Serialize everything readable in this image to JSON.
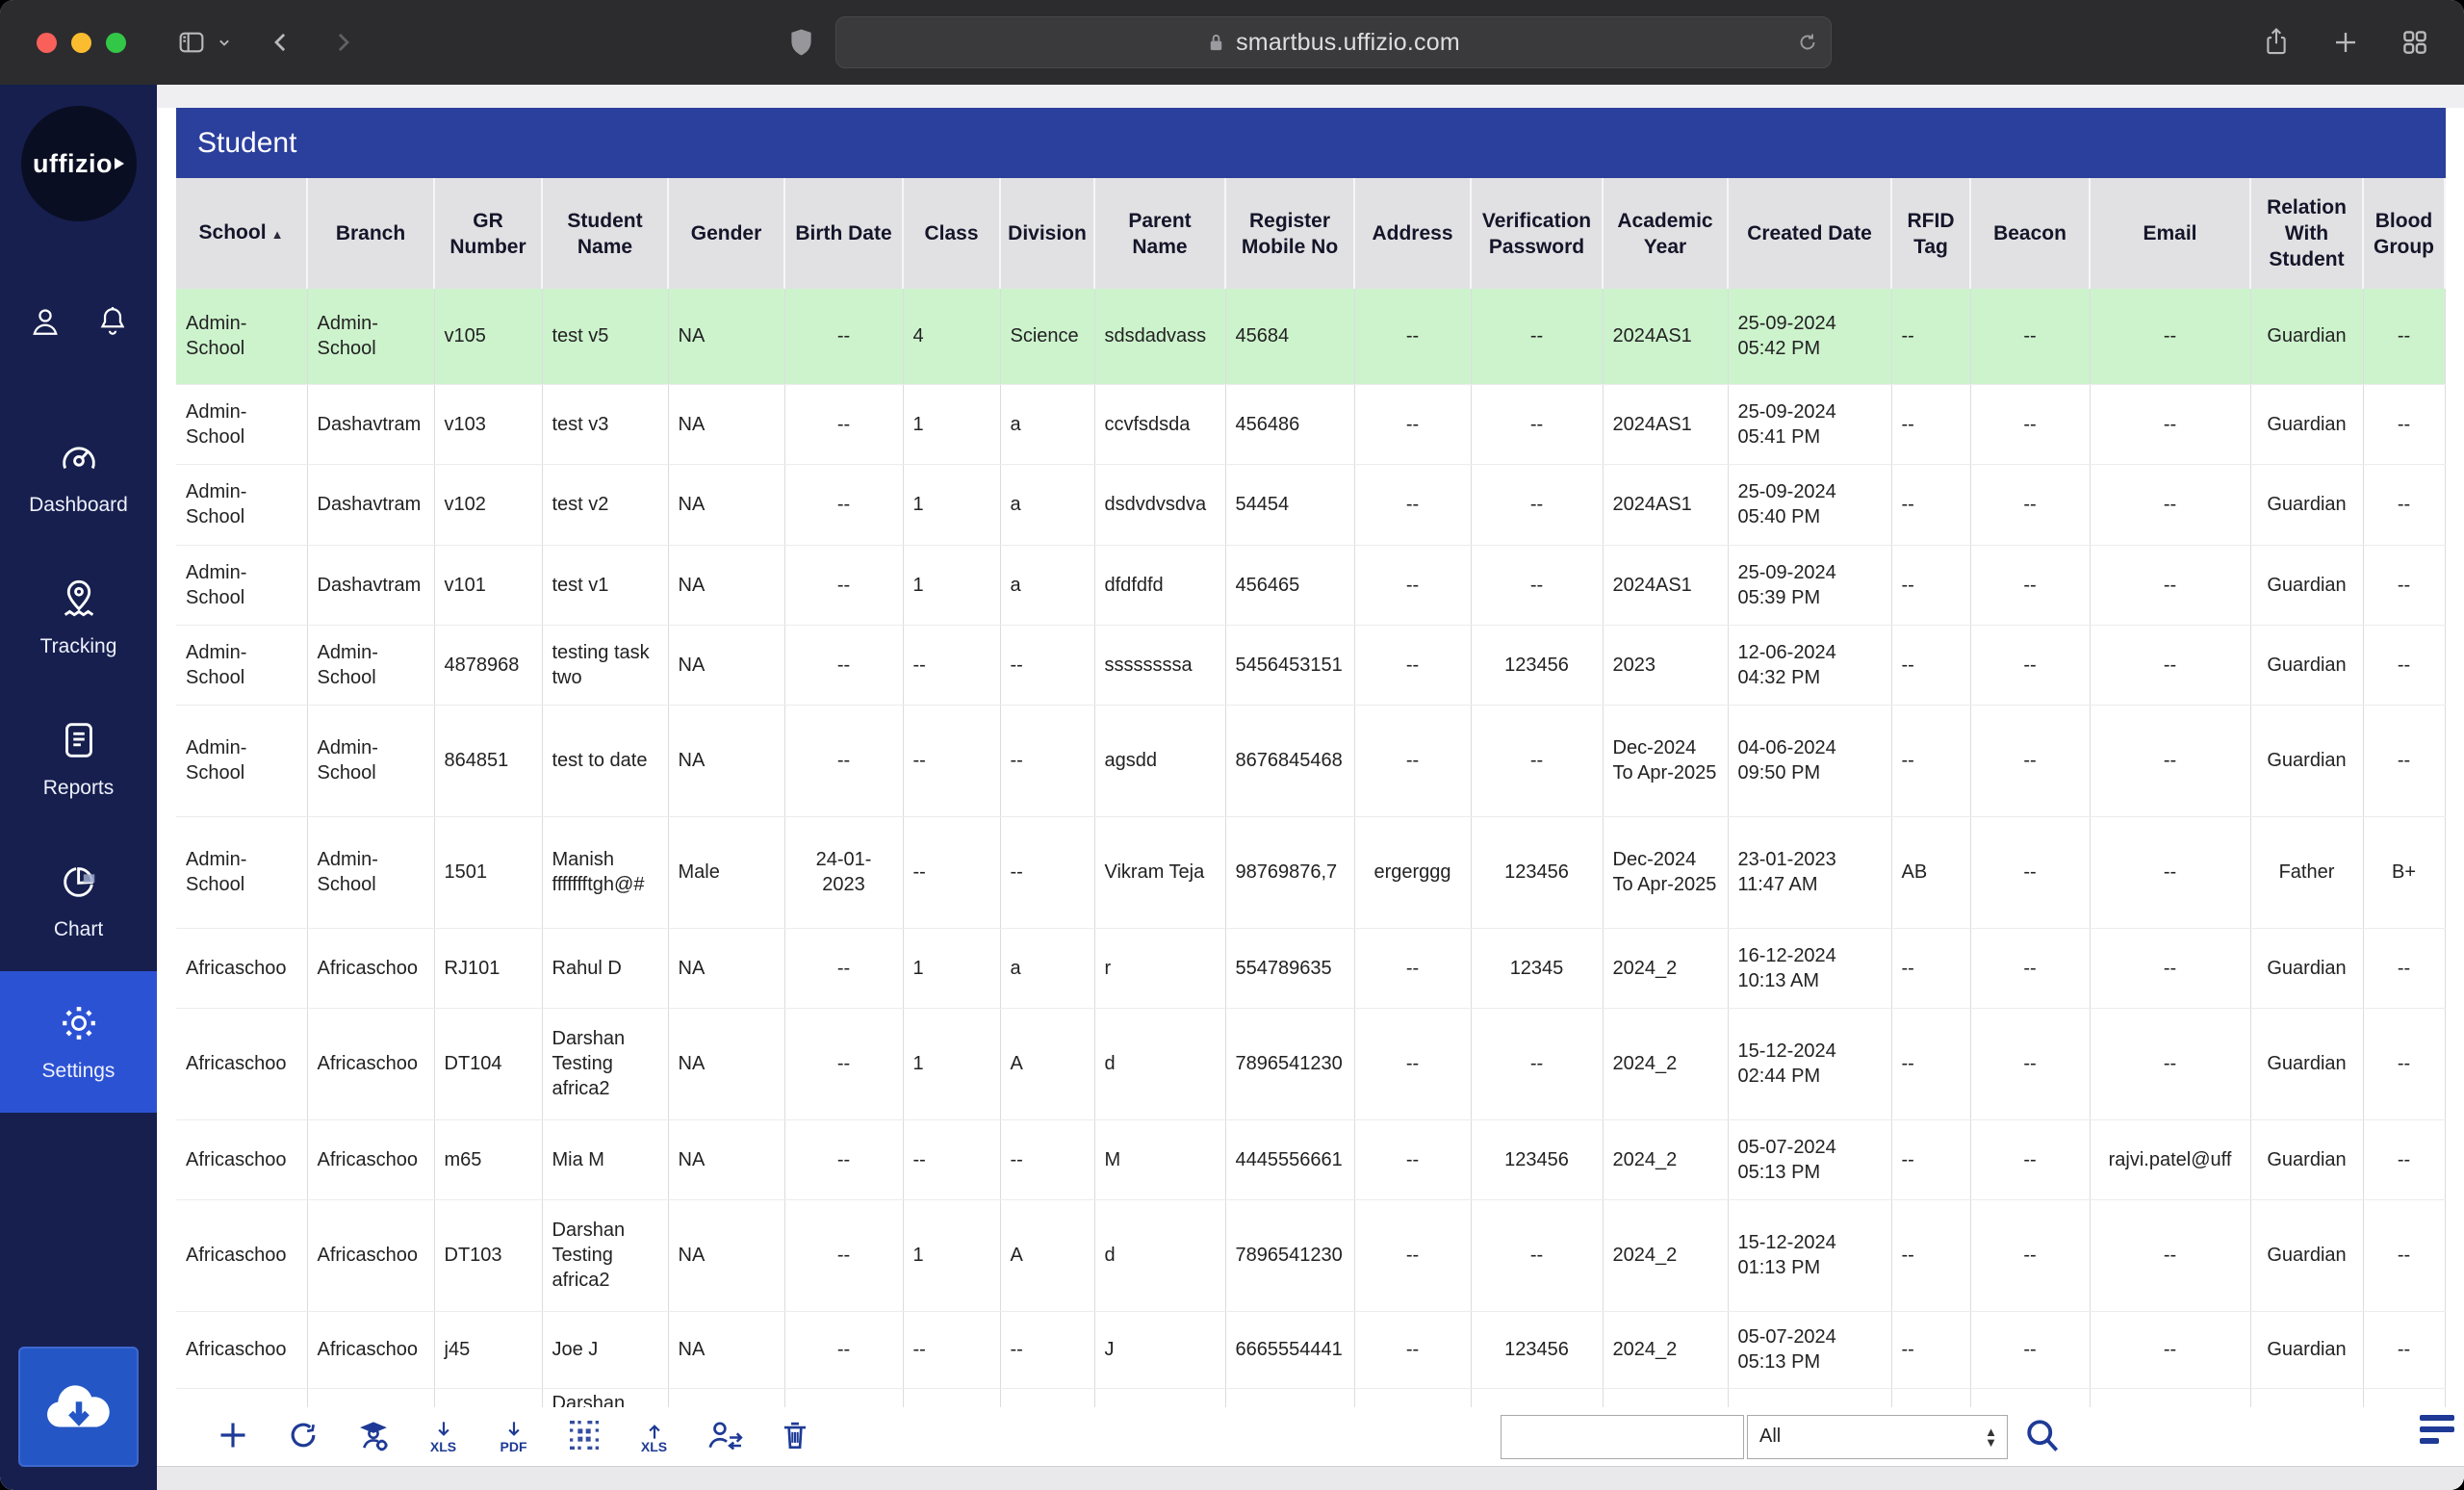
{
  "browser": {
    "url": "smartbus.uffizio.com",
    "traffic_light_colors": {
      "close": "#f9605a",
      "minimize": "#fbbd2f",
      "zoom": "#33c748"
    }
  },
  "sidebar": {
    "logo_text": "uffizio",
    "colors": {
      "background": "#161f4e",
      "active_item": "#2c52d4",
      "accent_button": "#2457c5"
    },
    "items": [
      {
        "label": "Dashboard",
        "active": false
      },
      {
        "label": "Tracking",
        "active": false
      },
      {
        "label": "Reports",
        "active": false
      },
      {
        "label": "Chart",
        "active": false
      },
      {
        "label": "Settings",
        "active": true
      }
    ]
  },
  "page": {
    "title": "Student",
    "title_bar_color": "#2b3f9c"
  },
  "table": {
    "highlight_color": "#cdf3cd",
    "highlighted_row_index": 0,
    "sort_column": "School",
    "sort_indicator": "▲",
    "columns": [
      "School",
      "Branch",
      "GR Number",
      "Student Name",
      "Gender",
      "Birth Date",
      "Class",
      "Division",
      "Parent Name",
      "Register Mobile No",
      "Address",
      "Verification Password",
      "Academic Year",
      "Created Date",
      "RFID Tag",
      "Beacon",
      "Email",
      "Relation With Student",
      "Blood Group"
    ],
    "rows": [
      [
        "Admin-School",
        "Admin-School",
        "v105",
        "test v5",
        "NA",
        "--",
        "4",
        "Science",
        "sdsdadvass",
        "45684",
        "--",
        "--",
        "2024AS1",
        "25-09-2024 05:42 PM",
        "--",
        "--",
        "--",
        "Guardian",
        "--"
      ],
      [
        "Admin-School",
        "Dashavtram",
        "v103",
        "test v3",
        "NA",
        "--",
        "1",
        "a",
        "ccvfsdsda",
        "456486",
        "--",
        "--",
        "2024AS1",
        "25-09-2024 05:41 PM",
        "--",
        "--",
        "--",
        "Guardian",
        "--"
      ],
      [
        "Admin-School",
        "Dashavtram",
        "v102",
        "test v2",
        "NA",
        "--",
        "1",
        "a",
        "dsdvdvsdva",
        "54454",
        "--",
        "--",
        "2024AS1",
        "25-09-2024 05:40 PM",
        "--",
        "--",
        "--",
        "Guardian",
        "--"
      ],
      [
        "Admin-School",
        "Dashavtram",
        "v101",
        "test v1",
        "NA",
        "--",
        "1",
        "a",
        "dfdfdfd",
        "456465",
        "--",
        "--",
        "2024AS1",
        "25-09-2024 05:39 PM",
        "--",
        "--",
        "--",
        "Guardian",
        "--"
      ],
      [
        "Admin-School",
        "Admin-School",
        "4878968",
        "testing task two",
        "NA",
        "--",
        "--",
        "--",
        "ssssssssa",
        "5456453151",
        "--",
        "123456",
        "2023",
        "12-06-2024 04:32 PM",
        "--",
        "--",
        "--",
        "Guardian",
        "--"
      ],
      [
        "Admin-School",
        "Admin-School",
        "864851",
        "test to date",
        "NA",
        "--",
        "--",
        "--",
        "agsdd",
        "8676845468",
        "--",
        "--",
        "Dec-2024 To Apr-2025",
        "04-06-2024 09:50 PM",
        "--",
        "--",
        "--",
        "Guardian",
        "--"
      ],
      [
        "Admin-School",
        "Admin-School",
        "1501",
        "Manish ffffffftgh@#",
        "Male",
        "24-01-2023",
        "--",
        "--",
        "Vikram Teja",
        "98769876,7",
        "ergerggg",
        "123456",
        "Dec-2024 To Apr-2025",
        "23-01-2023 11:47 AM",
        "AB",
        "--",
        "--",
        "Father",
        "B+"
      ],
      [
        "Africaschoo",
        "Africaschoo",
        "RJ101",
        "Rahul D",
        "NA",
        "--",
        "1",
        "a",
        "r",
        "554789635",
        "--",
        "12345",
        "2024_2",
        "16-12-2024 10:13 AM",
        "--",
        "--",
        "--",
        "Guardian",
        "--"
      ],
      [
        "Africaschoo",
        "Africaschoo",
        "DT104",
        "Darshan Testing africa2",
        "NA",
        "--",
        "1",
        "A",
        "d",
        "7896541230",
        "--",
        "--",
        "2024_2",
        "15-12-2024 02:44 PM",
        "--",
        "--",
        "--",
        "Guardian",
        "--"
      ],
      [
        "Africaschoo",
        "Africaschoo",
        "m65",
        "Mia M",
        "NA",
        "--",
        "--",
        "--",
        "M",
        "4445556661",
        "--",
        "123456",
        "2024_2",
        "05-07-2024 05:13 PM",
        "--",
        "--",
        "rajvi.patel@uff",
        "Guardian",
        "--"
      ],
      [
        "Africaschoo",
        "Africaschoo",
        "DT103",
        "Darshan Testing africa2",
        "NA",
        "--",
        "1",
        "A",
        "d",
        "7896541230",
        "--",
        "--",
        "2024_2",
        "15-12-2024 01:13 PM",
        "--",
        "--",
        "--",
        "Guardian",
        "--"
      ],
      [
        "Africaschoo",
        "Africaschoo",
        "j45",
        "Joe J",
        "NA",
        "--",
        "--",
        "--",
        "J",
        "6665554441",
        "--",
        "123456",
        "2024_2",
        "05-07-2024 05:13 PM",
        "--",
        "--",
        "--",
        "Guardian",
        "--"
      ],
      [
        "",
        "",
        "",
        "Darshan",
        "",
        "",
        "",
        "",
        "",
        "",
        "",
        "",
        "",
        "",
        "",
        "",
        "",
        "",
        ""
      ]
    ]
  },
  "toolbar": {
    "export_xls_label": "XLS",
    "export_pdf_label": "PDF",
    "import_xls_label": "XLS",
    "search_value": "",
    "filter_selected": "All",
    "icon_color": "#1e3a96"
  }
}
